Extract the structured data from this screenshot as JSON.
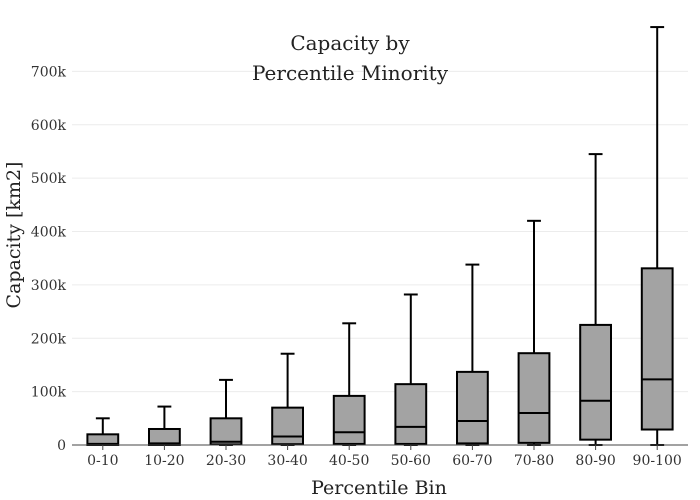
{
  "chart_data": {
    "type": "box",
    "title_lines": [
      "Capacity by",
      "Percentile Minority"
    ],
    "xlabel": "Percentile Bin",
    "ylabel": "Capacity  [km2]",
    "ylim": [
      0,
      800000
    ],
    "y_ticks": [
      0,
      100000,
      200000,
      300000,
      400000,
      500000,
      600000,
      700000
    ],
    "y_tick_labels": [
      "0",
      "100k",
      "200k",
      "300k",
      "400k",
      "500k",
      "600k",
      "700k"
    ],
    "grid": "y-major",
    "legend": "none",
    "categories": [
      "0-10",
      "10-20",
      "20-30",
      "30-40",
      "40-50",
      "50-60",
      "60-70",
      "70-80",
      "80-90",
      "90-100"
    ],
    "boxes": [
      {
        "category": "0-10",
        "min": 0,
        "q1": 0,
        "median": 2000,
        "q3": 20000,
        "max": 50000
      },
      {
        "category": "10-20",
        "min": 0,
        "q1": 0,
        "median": 3000,
        "q3": 30000,
        "max": 72000
      },
      {
        "category": "20-30",
        "min": 0,
        "q1": 1000,
        "median": 6000,
        "q3": 50000,
        "max": 122000
      },
      {
        "category": "30-40",
        "min": 0,
        "q1": 1500,
        "median": 16000,
        "q3": 70000,
        "max": 171000
      },
      {
        "category": "40-50",
        "min": 0,
        "q1": 2000,
        "median": 24000,
        "q3": 92000,
        "max": 228000
      },
      {
        "category": "50-60",
        "min": 0,
        "q1": 2000,
        "median": 34000,
        "q3": 114000,
        "max": 282000
      },
      {
        "category": "60-70",
        "min": 0,
        "q1": 3000,
        "median": 45000,
        "q3": 137000,
        "max": 338000
      },
      {
        "category": "70-80",
        "min": 0,
        "q1": 4000,
        "median": 60000,
        "q3": 172000,
        "max": 420000
      },
      {
        "category": "80-90",
        "min": 0,
        "q1": 10000,
        "median": 83000,
        "q3": 225000,
        "max": 545000
      },
      {
        "category": "90-100",
        "min": 0,
        "q1": 29000,
        "median": 123000,
        "q3": 331000,
        "max": 783000
      }
    ],
    "colors": {
      "box_fill": "#a3a3a3",
      "box_stroke": "#000000",
      "grid": "#ececec",
      "axis": "#444444",
      "background": "#ffffff"
    }
  }
}
